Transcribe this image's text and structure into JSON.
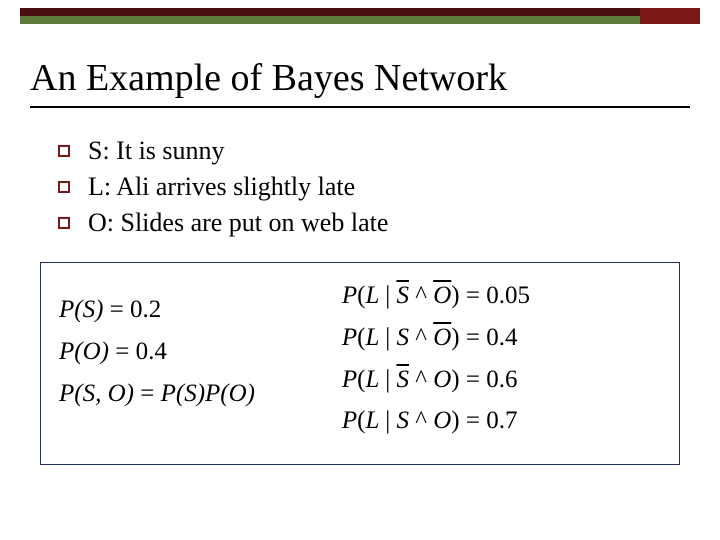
{
  "colors": {
    "top_bar_dark": "#4a0e0e",
    "top_bar_green": "#5e7a3a",
    "top_accent": "#7a1818",
    "bullet_border": "#7a1818",
    "formula_border": "#203060",
    "title_color": "#000000",
    "text_color": "#000000",
    "background": "#ffffff"
  },
  "title": "An Example of Bayes Network",
  "bullets": [
    "S: It is sunny",
    "L: Ali arrives slightly late",
    "O: Slides are put on web late"
  ],
  "left_equations": [
    {
      "lhs_plain": "P(S)",
      "rhs": "0.2"
    },
    {
      "lhs_plain": "P(O)",
      "rhs": "0.4"
    },
    {
      "lhs_plain": "P(S, O)",
      "rhs_plain": "P(S)P(O)"
    }
  ],
  "right_equations": [
    {
      "cond_var": "L",
      "given_a": "S",
      "a_bar": true,
      "given_b": "O",
      "b_bar": true,
      "rhs": "0.05"
    },
    {
      "cond_var": "L",
      "given_a": "S",
      "a_bar": false,
      "given_b": "O",
      "b_bar": true,
      "rhs": "0.4"
    },
    {
      "cond_var": "L",
      "given_a": "S",
      "a_bar": true,
      "given_b": "O",
      "b_bar": false,
      "rhs": "0.6"
    },
    {
      "cond_var": "L",
      "given_a": "S",
      "a_bar": false,
      "given_b": "O",
      "b_bar": false,
      "rhs": "0.7"
    }
  ]
}
